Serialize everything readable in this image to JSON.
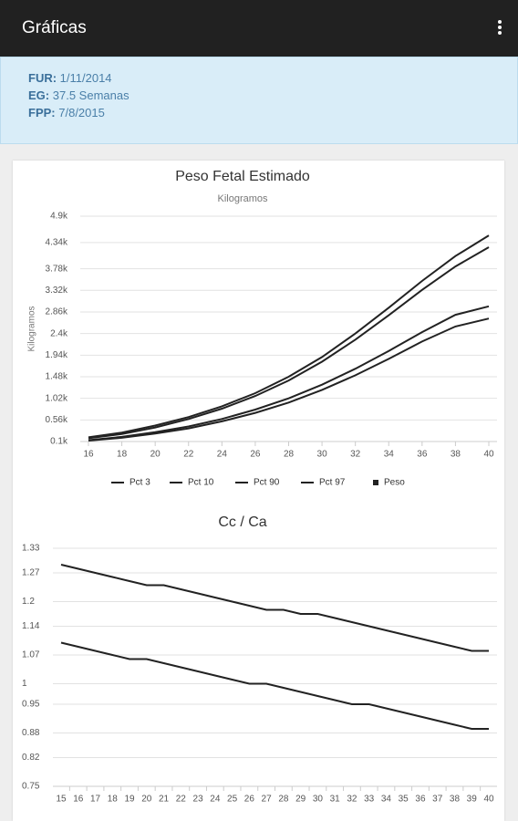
{
  "app_bar": {
    "title": "Gráficas"
  },
  "info": [
    {
      "label": "FUR:",
      "value": "1/11/2014"
    },
    {
      "label": "EG:",
      "value": "37.5 Semanas"
    },
    {
      "label": "FPP:",
      "value": "7/8/2015"
    }
  ],
  "chart_data": [
    {
      "type": "line",
      "title": "Peso Fetal Estimado",
      "subtitle": "Kilogramos",
      "y_label": "Kilogramos",
      "x": [
        16,
        18,
        20,
        22,
        24,
        26,
        28,
        30,
        32,
        34,
        36,
        38,
        40
      ],
      "xlim": [
        16,
        40
      ],
      "xticks": [
        16,
        18,
        20,
        22,
        24,
        26,
        28,
        30,
        32,
        34,
        36,
        38,
        40
      ],
      "ylim": [
        100,
        4900
      ],
      "yticks": [
        {
          "value": 100,
          "label": "0.1k"
        },
        {
          "value": 560,
          "label": "0.56k"
        },
        {
          "value": 1020,
          "label": "1.02k"
        },
        {
          "value": 1480,
          "label": "1.48k"
        },
        {
          "value": 1940,
          "label": "1.94k"
        },
        {
          "value": 2400,
          "label": "2.4k"
        },
        {
          "value": 2860,
          "label": "2.86k"
        },
        {
          "value": 3320,
          "label": "3.32k"
        },
        {
          "value": 3780,
          "label": "3.78k"
        },
        {
          "value": 4340,
          "label": "4.34k"
        },
        {
          "value": 4900,
          "label": "4.9k"
        }
      ],
      "grid": true,
      "legend": "bottom",
      "series": [
        {
          "name": "Pct 3",
          "color": "#222222",
          "values": [
            120,
            180,
            270,
            380,
            530,
            710,
            930,
            1200,
            1510,
            1860,
            2230,
            2550,
            2720
          ]
        },
        {
          "name": "Pct 10",
          "color": "#222222",
          "values": [
            130,
            200,
            300,
            420,
            580,
            780,
            1020,
            1310,
            1650,
            2030,
            2430,
            2800,
            2980
          ]
        },
        {
          "name": "Pct 90",
          "color": "#222222",
          "values": [
            170,
            260,
            400,
            580,
            800,
            1070,
            1400,
            1800,
            2270,
            2790,
            3330,
            3830,
            4240
          ]
        },
        {
          "name": "Pct 97",
          "color": "#222222",
          "values": [
            190,
            290,
            440,
            620,
            850,
            1130,
            1480,
            1900,
            2400,
            2950,
            3520,
            4050,
            4490
          ]
        },
        {
          "name": "Peso",
          "color": "#222222",
          "marker": "square",
          "values": [
            null,
            null,
            null,
            null,
            null,
            null,
            null,
            null,
            null,
            null,
            null,
            null,
            null
          ]
        }
      ]
    },
    {
      "type": "line",
      "title": "Cc / Ca",
      "x": [
        15,
        16,
        17,
        18,
        19,
        20,
        21,
        22,
        23,
        24,
        25,
        26,
        27,
        28,
        29,
        30,
        31,
        32,
        33,
        34,
        35,
        36,
        37,
        38,
        39,
        40
      ],
      "xlim": [
        15,
        40
      ],
      "ylim": [
        0.75,
        1.33
      ],
      "yticks": [
        0.75,
        0.82,
        0.88,
        0.95,
        1,
        1.07,
        1.14,
        1.2,
        1.27,
        1.33
      ],
      "grid": true,
      "series": [
        {
          "color": "#222222",
          "values": [
            1.29,
            1.28,
            1.27,
            1.26,
            1.25,
            1.24,
            1.24,
            1.23,
            1.22,
            1.21,
            1.2,
            1.19,
            1.18,
            1.18,
            1.17,
            1.17,
            1.16,
            1.15,
            1.14,
            1.13,
            1.12,
            1.11,
            1.1,
            1.09,
            1.08,
            1.08
          ]
        },
        {
          "color": "#222222",
          "values": [
            1.1,
            1.09,
            1.08,
            1.07,
            1.06,
            1.06,
            1.05,
            1.04,
            1.03,
            1.02,
            1.01,
            1.0,
            1.0,
            0.99,
            0.98,
            0.97,
            0.96,
            0.95,
            0.95,
            0.94,
            0.93,
            0.92,
            0.91,
            0.9,
            0.89,
            0.89
          ]
        }
      ]
    }
  ]
}
